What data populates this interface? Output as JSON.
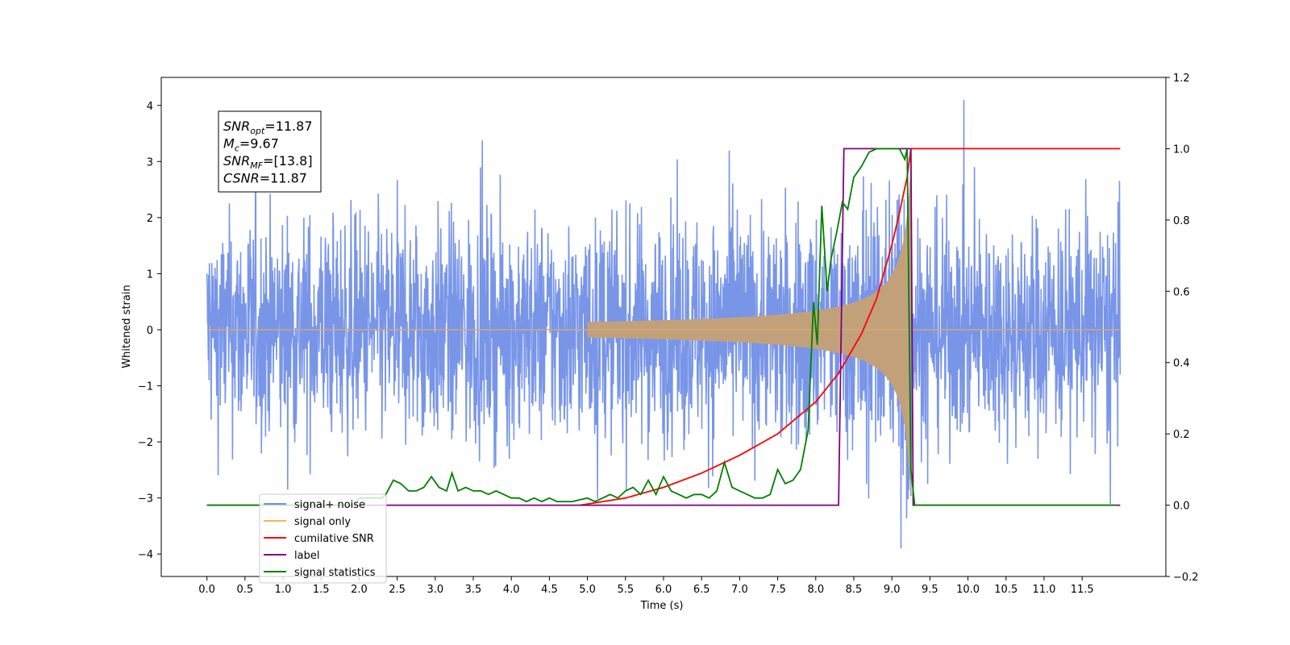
{
  "chart_data": {
    "type": "line",
    "xlabel": "Time (s)",
    "ylabel": "Whitened strain",
    "xlim": [
      -0.6,
      12.6
    ],
    "ylim": [
      -4.4,
      4.5
    ],
    "y2lim": [
      -0.2,
      1.2
    ],
    "x_ticks": [
      "0.0",
      "0.5",
      "1.0",
      "1.5",
      "2.0",
      "2.5",
      "3.0",
      "3.5",
      "4.0",
      "4.5",
      "5.0",
      "5.5",
      "6.0",
      "6.5",
      "7.0",
      "7.5",
      "8.0",
      "8.5",
      "9.0",
      "9.5",
      "10.0",
      "10.5",
      "11.0",
      "11.5"
    ],
    "y_ticks": [
      "4",
      "3",
      "2",
      "1",
      "0",
      "−1",
      "−2",
      "−3",
      "−4"
    ],
    "y2_ticks": [
      "1.2",
      "1.0",
      "0.8",
      "0.6",
      "0.4",
      "0.2",
      "0.0",
      "−0.2"
    ],
    "info_box": [
      {
        "base": "SNR",
        "sub": "opt",
        "rest": "=11.87"
      },
      {
        "base": "M",
        "sub": "c",
        "rest": "=9.67"
      },
      {
        "base": "SNR",
        "sub": "MF",
        "rest": "=[13.8]"
      },
      {
        "base": "CSNR",
        "sub": "",
        "rest": "=11.87"
      }
    ],
    "legend_position": "lower-left",
    "grid": false,
    "colors": {
      "noise": "#6c8ce6",
      "signal": "#f5b754",
      "cumulative": "#ff0000",
      "label": "#800080",
      "statistics": "#008000"
    },
    "series": [
      {
        "name": "signal+ noise",
        "axis": "left",
        "description": "whitened noise plus signal, time 0 to 12 s",
        "approx_envelope": [
          -3.9,
          4.1
        ]
      },
      {
        "name": "signal only",
        "axis": "left",
        "chirp_start": 5.0,
        "chirp_end": 9.25,
        "peak_amplitude": 3.2
      },
      {
        "name": "cumilative SNR",
        "axis": "right",
        "x": [
          4.9,
          5.5,
          6.0,
          6.5,
          7.0,
          7.5,
          8.0,
          8.3,
          8.6,
          8.8,
          9.0,
          9.1,
          9.2,
          9.25,
          12.0
        ],
        "y": [
          0.0,
          0.02,
          0.05,
          0.09,
          0.14,
          0.2,
          0.29,
          0.37,
          0.48,
          0.58,
          0.73,
          0.82,
          0.92,
          1.0,
          1.0
        ]
      },
      {
        "name": "label",
        "axis": "right",
        "x": [
          0.0,
          8.3,
          8.37,
          9.25,
          9.28,
          12.0
        ],
        "y": [
          0.0,
          0.0,
          1.0,
          1.0,
          0.0,
          0.0
        ]
      },
      {
        "name": "signal statistics",
        "axis": "right",
        "x": [
          0.0,
          1.95,
          2.0,
          2.3,
          2.35,
          2.45,
          2.55,
          2.65,
          2.75,
          2.85,
          2.95,
          3.05,
          3.15,
          3.22,
          3.3,
          3.4,
          3.5,
          3.6,
          3.7,
          3.8,
          3.9,
          4.0,
          4.1,
          4.2,
          4.3,
          4.4,
          4.5,
          4.6,
          4.7,
          4.8,
          4.9,
          5.0,
          5.1,
          5.2,
          5.3,
          5.4,
          5.5,
          5.6,
          5.7,
          5.8,
          5.9,
          6.0,
          6.1,
          6.2,
          6.3,
          6.4,
          6.5,
          6.6,
          6.7,
          6.8,
          6.9,
          7.0,
          7.1,
          7.2,
          7.3,
          7.4,
          7.5,
          7.6,
          7.7,
          7.8,
          7.9,
          7.97,
          8.02,
          8.08,
          8.15,
          8.2,
          8.28,
          8.35,
          8.42,
          8.5,
          8.6,
          8.7,
          8.8,
          9.0,
          9.1,
          9.17,
          9.2,
          9.25,
          9.3,
          11.95
        ],
        "y": [
          0.0,
          0.0,
          0.02,
          0.02,
          0.03,
          0.07,
          0.06,
          0.04,
          0.04,
          0.05,
          0.08,
          0.05,
          0.04,
          0.09,
          0.04,
          0.05,
          0.04,
          0.04,
          0.03,
          0.04,
          0.03,
          0.02,
          0.02,
          0.01,
          0.02,
          0.01,
          0.02,
          0.01,
          0.01,
          0.01,
          0.015,
          0.02,
          0.01,
          0.02,
          0.03,
          0.02,
          0.04,
          0.05,
          0.03,
          0.07,
          0.03,
          0.08,
          0.04,
          0.03,
          0.02,
          0.03,
          0.03,
          0.02,
          0.04,
          0.12,
          0.05,
          0.04,
          0.03,
          0.02,
          0.02,
          0.03,
          0.1,
          0.06,
          0.07,
          0.1,
          0.21,
          0.57,
          0.45,
          0.84,
          0.6,
          0.69,
          0.77,
          0.85,
          0.83,
          0.92,
          0.95,
          0.99,
          1.0,
          1.0,
          1.0,
          0.97,
          1.0,
          0.1,
          0.0,
          0.0
        ]
      }
    ]
  },
  "legend": {
    "items": [
      {
        "label": "signal+ noise",
        "color": "#6c8ce6"
      },
      {
        "label": "signal only",
        "color": "#f5b754"
      },
      {
        "label": "cumilative SNR",
        "color": "#ff0000"
      },
      {
        "label": "label",
        "color": "#800080"
      },
      {
        "label": "signal statistics",
        "color": "#008000"
      }
    ]
  }
}
